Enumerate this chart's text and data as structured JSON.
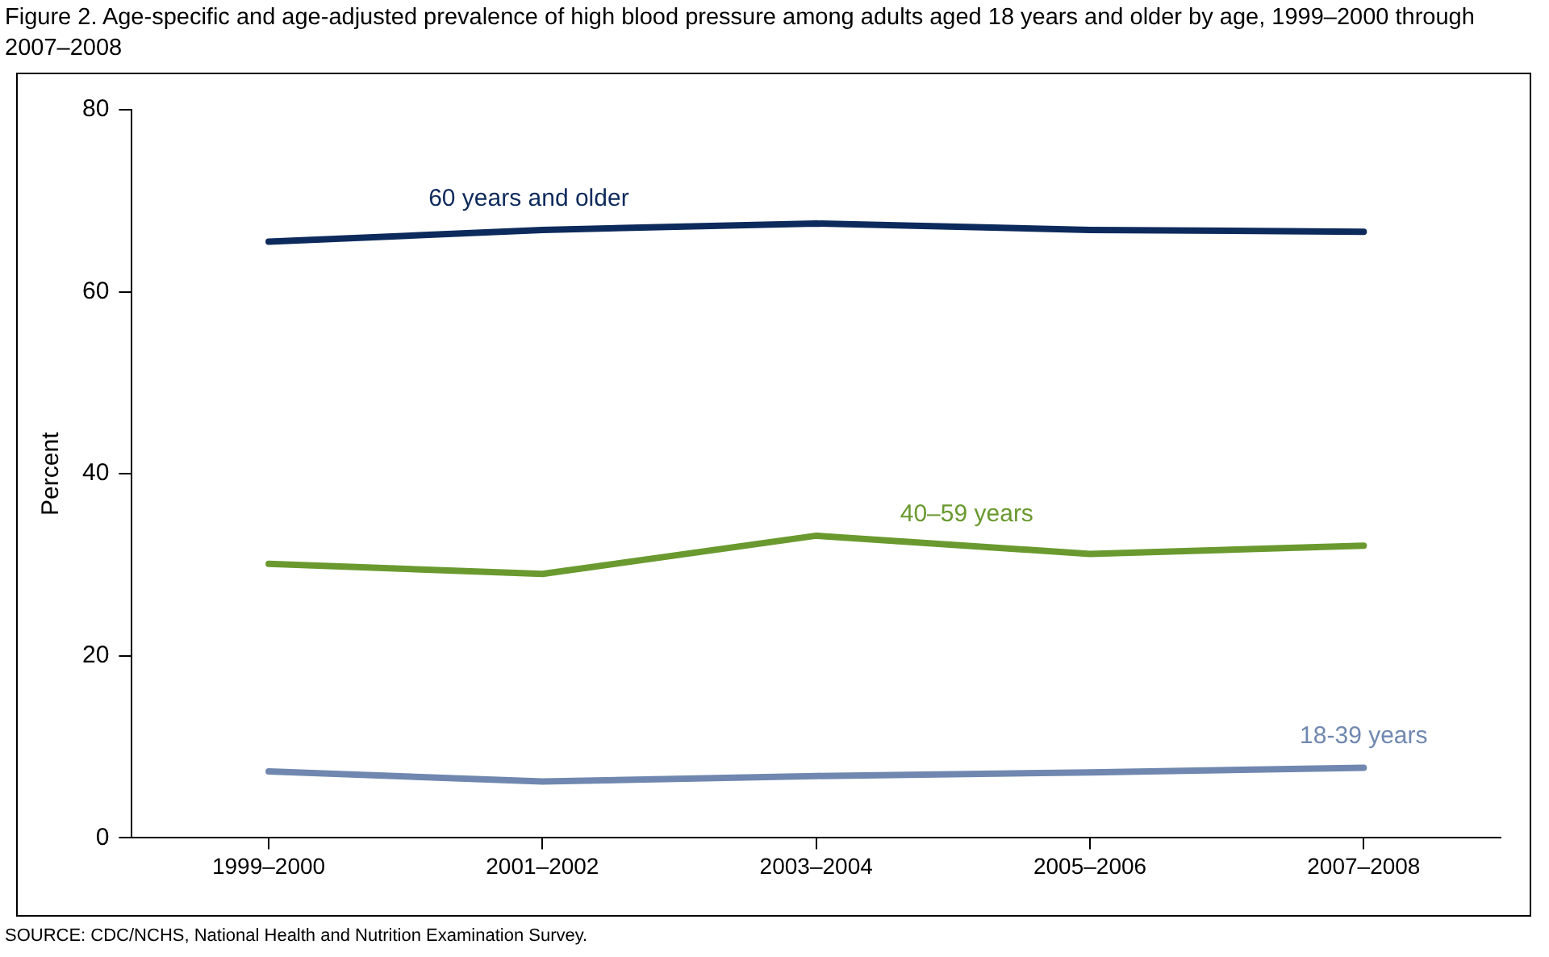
{
  "chart_data": {
    "type": "line",
    "title": "Figure 2. Age-specific and age-adjusted prevalence of high blood pressure among adults aged 18 years and older by age, 1999–2000 through 2007–2008",
    "ylabel": "Percent",
    "categories": [
      "1999–2000",
      "2001–2002",
      "2003–2004",
      "2005–2006",
      "2007–2008"
    ],
    "series": [
      {
        "name": "60 years and older",
        "color": "#0d2a5c",
        "values": [
          65.5,
          66.8,
          67.5,
          66.8,
          66.6
        ]
      },
      {
        "name": "40–59 years",
        "color": "#6a9a2f",
        "values": [
          30.1,
          29.0,
          33.2,
          31.2,
          32.1
        ]
      },
      {
        "name": "18-39 years",
        "color": "#7088b0",
        "values": [
          7.3,
          6.2,
          6.8,
          7.2,
          7.7
        ]
      }
    ],
    "ylim": [
      0,
      80
    ],
    "yticks": [
      0,
      20,
      40,
      60,
      80
    ],
    "grid": false,
    "legend": false,
    "marker": "none",
    "line_style": "solid",
    "annotations": [
      "SOURCE: CDC/NCHS, National Health and Nutrition Examination Survey."
    ]
  }
}
